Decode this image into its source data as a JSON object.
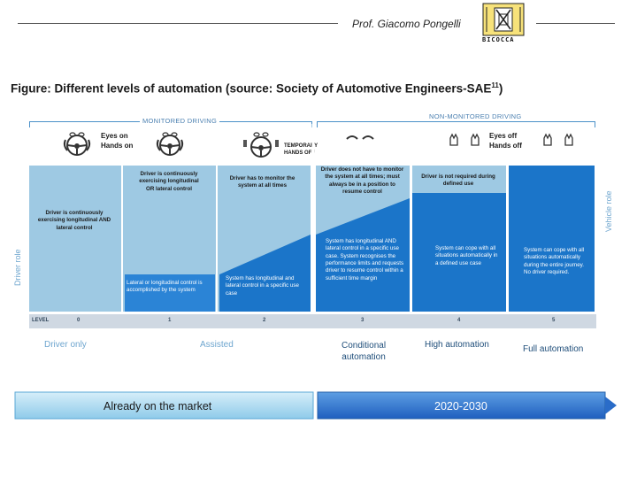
{
  "header": {
    "author": "Prof. Giacomo Pongelli",
    "logo_text": "BICOCCA",
    "logo_seal": "UNIVERSITÀ DEGLI STUDI MILANO"
  },
  "figure": {
    "title": "Figure: Different levels of automation (source: Society of Automotive Engineers-SAE",
    "title_ref": "11",
    "title_close": ")"
  },
  "sections": {
    "monitored": "MONITORED DRIVING",
    "non_monitored": "NON-MONITORED DRIVING"
  },
  "icon_captions": {
    "eyes_on": "Eyes on",
    "hands_on": "Hands on",
    "temporary_1": "TEMPORARY",
    "temporary_2": "HANDS OFF",
    "eyes_off": "Eyes off",
    "hands_off": "Hands off"
  },
  "driver_role_texts": [
    "Driver is continuously exercising longitudinal AND lateral control",
    "Driver is continuously exercising longitudinal OR lateral control",
    "Driver has to monitor the system at all times",
    "Driver does not have to monitor the system at all times; must always be in a position to resume control",
    "Driver is not required during defined use"
  ],
  "vehicle_role_texts": [
    "Lateral or longitudinal control is accomplished by the system",
    "System has longitudinal and lateral control in a specific use case",
    "System has longitudinal AND lateral control in a specific use case. System recognises the performance limits and requests driver to resume control within a sufficient time margin",
    "System can cope with all situations automatically in a defined use case",
    "System can cope with all situations automatically during the entire journey. No driver required."
  ],
  "axes": {
    "driver_role": "Driver role",
    "vehicle_role": "Vehicle role"
  },
  "level": {
    "label": "LEVEL",
    "values": [
      "0",
      "1",
      "2",
      "3",
      "4",
      "5"
    ]
  },
  "categories": {
    "driver_only": "Driver only",
    "assisted": "Assisted",
    "conditional_1": "Conditional",
    "conditional_2": "automation",
    "high": "High automation",
    "full": "Full automation"
  },
  "timeline": {
    "market": "Already on the market",
    "future": "2020-2030"
  },
  "colors": {
    "driver_light": "#9ec9e3",
    "vehicle_dark": "#1b75c9",
    "accent_line": "#4a90c8"
  }
}
